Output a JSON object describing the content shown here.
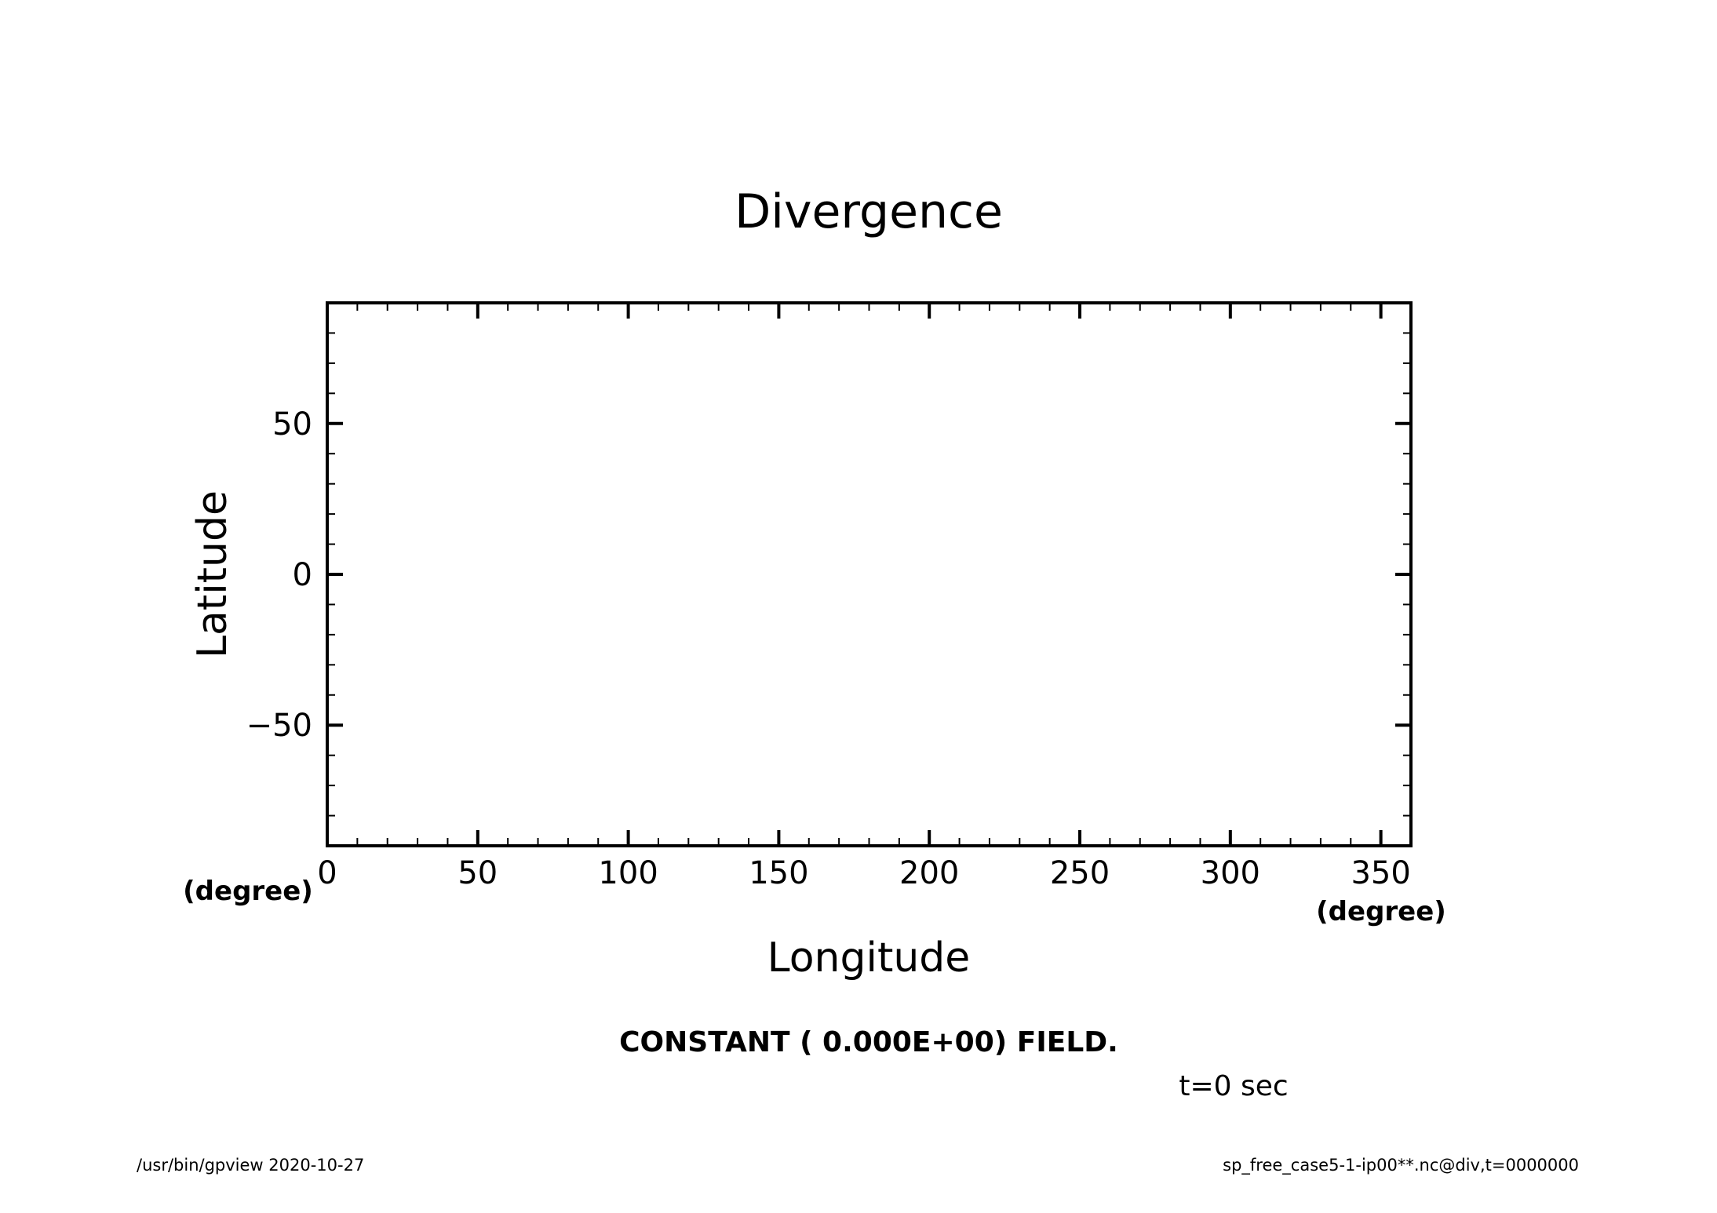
{
  "chart_data": {
    "type": "heatmap",
    "title": "Divergence",
    "xlabel": "Longitude",
    "ylabel": "Latitude",
    "x_unit": "(degree)",
    "y_unit": "(degree)",
    "xlim": [
      0,
      360
    ],
    "ylim": [
      -90,
      90
    ],
    "x_ticks": [
      0,
      50,
      100,
      150,
      200,
      250,
      300,
      350
    ],
    "x_minor_step": 10,
    "y_ticks": [
      -50,
      0,
      50
    ],
    "y_minor_step": 10,
    "field": "CONSTANT ( 0.000E+00) FIELD.",
    "field_value": 0,
    "time_label": "t=0 sec",
    "grid": false
  },
  "footer": {
    "left": "/usr/bin/gpview   2020-10-27",
    "right": "sp_free_case5-1-ip00**.nc@div,t=0000000"
  }
}
